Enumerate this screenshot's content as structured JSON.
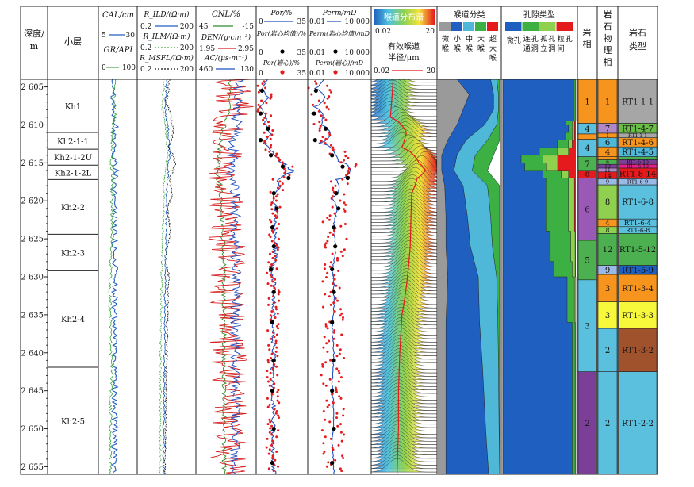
{
  "header": {
    "depth_label": "深度/\nm",
    "layer_label": "小层",
    "cal_label": "CAL/cm",
    "cal_range": [
      "5",
      "30"
    ],
    "gr_label": "GR/API",
    "gr_range": [
      "0",
      "100"
    ],
    "rild_label": "R_ILD/(Ω·m)",
    "rild_range": [
      "0.2",
      "200"
    ],
    "rilm_label": "R_ILM/(Ω·m)",
    "rilm_range": [
      "0.2",
      "200"
    ],
    "rmsfl_label": "R_MSFL/(Ω·m)",
    "rmsfl_range": [
      "0.2",
      "200"
    ],
    "cnl_label": "CNL/%",
    "cnl_range": [
      "45",
      "-15"
    ],
    "den_label": "DEN/(g·cm⁻³)",
    "den_range": [
      "1.95",
      "2.95"
    ],
    "ac_label": "AC/(μs·m⁻¹)",
    "ac_range": [
      "460",
      "130"
    ],
    "por_label": "Por/%",
    "por_range": [
      "0",
      "35"
    ],
    "por_avg_label": "Por(岩心均值)/%",
    "por_avg_range": [
      "0",
      "35"
    ],
    "por_core_label": "Por(岩心)/%",
    "por_core_range": [
      "0",
      "35"
    ],
    "perm_label": "Perm/mD",
    "perm_range": [
      "0.01",
      "10 000"
    ],
    "perm_avg_label": "Perm(岩心均值)/mD",
    "perm_avg_range": [
      "0.01",
      "10 000"
    ],
    "perm_core_label": "Perm(岩心)/mD",
    "perm_core_range": [
      "0.01",
      "10 000"
    ],
    "spectrum_label": "喉道分布谱",
    "spectrum_range": [
      "0.02",
      "20"
    ],
    "radius_label": "有效喉道\n半径/μm",
    "radius_range": [
      "0.02",
      "20"
    ],
    "throat_class_label": "喉道分类",
    "throat_classes": [
      "微喉",
      "小喉",
      "中喉",
      "大喉",
      "超大喉"
    ],
    "pore_type_label": "孔隙类型",
    "pore_types": [
      "微孔",
      "连通孔洞",
      "孤立孔洞",
      "粒间孔"
    ],
    "lithofacies_label": "岩相",
    "petro_facies_label": "岩石物理相",
    "rock_type_label": "岩石类型"
  },
  "colors": {
    "cal": "#1f5fbf",
    "gr": "#3aa63a",
    "cnl": "#2e8b2e",
    "den": "#d62020",
    "ac": "#1f4fbf",
    "por": "#1f4fbf",
    "perm": "#1f4fbf",
    "core_point": "#e41a1c",
    "avg_point": "#000000",
    "throat": [
      "#9a9a9a",
      "#1f5fbf",
      "#4fb8d8",
      "#3cb043",
      "#e41a1c"
    ],
    "pore": [
      "#1f5fbf",
      "#3cb043",
      "#8fd14f",
      "#e41a1c"
    ]
  },
  "chart_data": {
    "type": "well_log",
    "depth_range": [
      2604,
      2656
    ],
    "depth_ticks": [
      "2 605",
      "2 610",
      "2 615",
      "2 620",
      "2 625",
      "2 630",
      "2 635",
      "2 640",
      "2 645",
      "2 650",
      "2 655"
    ],
    "depth_tick_values": [
      2605,
      2610,
      2615,
      2620,
      2625,
      2630,
      2635,
      2640,
      2645,
      2650,
      2655
    ],
    "layers": [
      {
        "name": "Kh1",
        "top": 2604,
        "bottom": 2611
      },
      {
        "name": "Kh2-1-1",
        "top": 2611,
        "bottom": 2613.2
      },
      {
        "name": "Kh2-1-2U",
        "top": 2613.2,
        "bottom": 2615.3
      },
      {
        "name": "Kh2-1-2L",
        "top": 2615.3,
        "bottom": 2617.2
      },
      {
        "name": "Kh2-2",
        "top": 2617.2,
        "bottom": 2624.4
      },
      {
        "name": "Kh2-3",
        "top": 2624.4,
        "bottom": 2629.2
      },
      {
        "name": "Kh2-4",
        "top": 2629.2,
        "bottom": 2641.9
      },
      {
        "name": "Kh2-5",
        "top": 2641.9,
        "bottom": 2656
      }
    ],
    "lithofacies": [
      {
        "label": "1",
        "top": 2604,
        "bottom": 2609.8,
        "color": "#f7941d"
      },
      {
        "label": "4",
        "top": 2609.8,
        "bottom": 2611.2,
        "color": "#5bc0de"
      },
      {
        "label": "1",
        "top": 2611.2,
        "bottom": 2611.9,
        "color": "#f7941d"
      },
      {
        "label": "4",
        "top": 2611.9,
        "bottom": 2614.2,
        "color": "#5bc0de"
      },
      {
        "label": "7",
        "top": 2614.2,
        "bottom": 2616.0,
        "color": "#4caf50"
      },
      {
        "label": "8",
        "top": 2616.0,
        "bottom": 2617.0,
        "color": "#e41a1c"
      },
      {
        "label": "6",
        "top": 2617.0,
        "bottom": 2625.2,
        "color": "#9b59b6"
      },
      {
        "label": "5",
        "top": 2625.2,
        "bottom": 2630.4,
        "color": "#4caf50"
      },
      {
        "label": "3",
        "top": 2630.4,
        "bottom": 2642.5,
        "color": "#5bc0de"
      },
      {
        "label": "2",
        "top": 2642.5,
        "bottom": 2656,
        "color": "#7b3f98"
      }
    ],
    "petro_facies": [
      {
        "label": "1",
        "top": 2604,
        "bottom": 2609.8,
        "color": "#f7941d"
      },
      {
        "label": "7",
        "top": 2609.8,
        "bottom": 2611.1,
        "color": "#b088c8"
      },
      {
        "label": "1",
        "top": 2611.1,
        "bottom": 2611.7,
        "color": "#f7941d"
      },
      {
        "label": "6",
        "top": 2611.7,
        "bottom": 2612.9,
        "color": "#4fb8d8"
      },
      {
        "label": "4",
        "top": 2612.9,
        "bottom": 2614.2,
        "color": "#f7941d"
      },
      {
        "label": "5",
        "top": 2614.2,
        "bottom": 2614.6,
        "color": "#f7941d"
      },
      {
        "label": "6",
        "top": 2614.6,
        "bottom": 2615.2,
        "color": "#4caf50"
      },
      {
        "label": "10",
        "top": 2615.2,
        "bottom": 2615.7,
        "color": "#7b3f98"
      },
      {
        "label": "11",
        "top": 2615.7,
        "bottom": 2616.2,
        "color": "#b088c8"
      },
      {
        "label": "14",
        "top": 2616.2,
        "bottom": 2617.1,
        "color": "#e41a1c"
      },
      {
        "label": "9",
        "top": 2617.1,
        "bottom": 2617.9,
        "color": "#9ab9e6"
      },
      {
        "label": "8",
        "top": 2617.9,
        "bottom": 2622.4,
        "color": "#8fd14f"
      },
      {
        "label": "4",
        "top": 2622.4,
        "bottom": 2623.4,
        "color": "#f7941d"
      },
      {
        "label": "8",
        "top": 2623.4,
        "bottom": 2624.3,
        "color": "#8fd14f"
      },
      {
        "label": "12",
        "top": 2624.3,
        "bottom": 2628.5,
        "color": "#4caf50"
      },
      {
        "label": "9",
        "top": 2628.5,
        "bottom": 2629.7,
        "color": "#9ab9e6"
      },
      {
        "label": "3",
        "top": 2629.7,
        "bottom": 2633.3,
        "color": "#f7941d"
      },
      {
        "label": "3",
        "top": 2633.3,
        "bottom": 2636.8,
        "color": "#f7f73b"
      },
      {
        "label": "2",
        "top": 2636.8,
        "bottom": 2642.5,
        "color": "#5bc0de"
      },
      {
        "label": "2",
        "top": 2642.5,
        "bottom": 2656,
        "color": "#5bc0de"
      }
    ],
    "rock_types": [
      {
        "label": "RT1-1-1",
        "top": 2604,
        "bottom": 2609.8,
        "color": "#a6a6a6"
      },
      {
        "label": "RT1-4-7",
        "top": 2609.8,
        "bottom": 2611.1,
        "color": "#6abd45"
      },
      {
        "label": "RT1-1-1",
        "top": 2611.1,
        "bottom": 2611.7,
        "color": "#a6a6a6"
      },
      {
        "label": "RT1-4-6",
        "top": 2611.7,
        "bottom": 2612.9,
        "color": "#f7941d"
      },
      {
        "label": "RT1-4-5",
        "top": 2612.9,
        "bottom": 2614.2,
        "color": "#4fb8d8"
      },
      {
        "label": "RT1-5-9",
        "top": 2614.2,
        "bottom": 2614.6,
        "color": "#4caf50"
      },
      {
        "label": "RT1-5-10",
        "top": 2614.6,
        "bottom": 2615.2,
        "color": "#7b3f98"
      },
      {
        "label": "RT1-5-10",
        "top": 2615.2,
        "bottom": 2615.7,
        "color": "#e91e8c"
      },
      {
        "label": "RT1-8-14",
        "top": 2615.7,
        "bottom": 2617.1,
        "color": "#e41a1c"
      },
      {
        "label": "RT1-6-9",
        "top": 2617.1,
        "bottom": 2617.9,
        "color": "#9ab9e6"
      },
      {
        "label": "RT1-6-8",
        "top": 2617.9,
        "bottom": 2622.4,
        "color": "#5bc0de"
      },
      {
        "label": "RT1-6-4",
        "top": 2622.4,
        "bottom": 2623.4,
        "color": "#5bc0de"
      },
      {
        "label": "RT1-6-8",
        "top": 2623.4,
        "bottom": 2624.3,
        "color": "#5bc0de"
      },
      {
        "label": "RT1-5-12",
        "top": 2624.3,
        "bottom": 2628.5,
        "color": "#4caf50"
      },
      {
        "label": "RT1-5-9",
        "top": 2628.5,
        "bottom": 2629.7,
        "color": "#1f5fbf"
      },
      {
        "label": "RT1-3-4",
        "top": 2629.7,
        "bottom": 2633.3,
        "color": "#f7941d"
      },
      {
        "label": "RT1-3-3",
        "top": 2633.3,
        "bottom": 2636.8,
        "color": "#f7f73b"
      },
      {
        "label": "RT1-3-2",
        "top": 2636.8,
        "bottom": 2642.5,
        "color": "#a0522d"
      },
      {
        "label": "RT1-2-2",
        "top": 2642.5,
        "bottom": 2656,
        "color": "#5bc0de"
      }
    ],
    "logs": {
      "cal": {
        "depth": [
          2604,
          2608,
          2610,
          2612,
          2614,
          2616,
          2618,
          2620,
          2625,
          2630,
          2635,
          2640,
          2645,
          2650,
          2656
        ],
        "value": [
          14.2,
          14.8,
          16.0,
          15.1,
          14.9,
          16.1,
          15.0,
          15.3,
          15.2,
          15.6,
          15.3,
          15.5,
          15.4,
          15.5,
          15.3
        ]
      },
      "gr": {
        "depth": [
          2604,
          2607,
          2609,
          2611,
          2613,
          2615,
          2617,
          2619,
          2623,
          2627,
          2631,
          2635,
          2639,
          2643,
          2647,
          2651,
          2656
        ],
        "value": [
          42,
          40,
          42,
          36,
          36,
          34,
          38,
          36,
          34,
          33,
          30,
          31,
          32,
          35,
          31,
          32,
          30
        ]
      },
      "rild": {
        "depth": [
          2604,
          2608,
          2611,
          2614,
          2617,
          2620,
          2625,
          2630,
          2640,
          2650,
          2656
        ],
        "value": [
          6.5,
          5.5,
          8.0,
          9.0,
          7.0,
          6.5,
          6.0,
          5.5,
          5.0,
          4.5,
          4.5
        ]
      },
      "rilm": {
        "depth": [
          2604,
          2608,
          2611,
          2614,
          2617,
          2620,
          2625,
          2630,
          2640,
          2650,
          2656
        ],
        "value": [
          4.5,
          4.0,
          6.0,
          7.0,
          5.0,
          4.5,
          4.0,
          3.6,
          3.2,
          3.0,
          3.0
        ]
      },
      "rmsfl": {
        "depth": [
          2604,
          2607,
          2609,
          2611,
          2613,
          2615,
          2617,
          2619,
          2621,
          2624,
          2627,
          2630,
          2635,
          2640,
          2645,
          2650,
          2656
        ],
        "value": [
          9.0,
          6.0,
          11.0,
          14.0,
          8.0,
          18.0,
          9.0,
          12.0,
          7.0,
          10.0,
          6.0,
          8.0,
          7.0,
          6.5,
          6.0,
          5.5,
          5.0
        ]
      },
      "cnl": {
        "depth": [
          2604,
          2608,
          2610,
          2613,
          2616,
          2620,
          2625,
          2630,
          2640,
          2650,
          2656
        ],
        "value": [
          11,
          12,
          17,
          21,
          24,
          19,
          18,
          17,
          17,
          17,
          17
        ]
      },
      "den": {
        "depth": [
          2604,
          2608,
          2610,
          2613,
          2616,
          2620,
          2625,
          2630,
          2640,
          2650,
          2656
        ],
        "value": [
          2.6,
          2.58,
          2.5,
          2.44,
          2.4,
          2.46,
          2.47,
          2.48,
          2.49,
          2.49,
          2.5
        ]
      },
      "ac": {
        "depth": [
          2604,
          2608,
          2610,
          2613,
          2616,
          2620,
          2625,
          2630,
          2640,
          2650,
          2656
        ],
        "value": [
          225,
          228,
          240,
          255,
          262,
          248,
          246,
          244,
          243,
          243,
          242
        ]
      },
      "por": {
        "depth": [
          2604,
          2605.2,
          2606.4,
          2607.6,
          2608.8,
          2610,
          2611.2,
          2612.4,
          2613.6,
          2614.8,
          2616,
          2617.2,
          2618.4,
          2619.6,
          2621,
          2623,
          2625,
          2627,
          2629,
          2631,
          2634,
          2637,
          2640,
          2644,
          2648,
          2652,
          2656
        ],
        "value": [
          7,
          4,
          8,
          3,
          7,
          6,
          10,
          5,
          12,
          16,
          24,
          14,
          15,
          11,
          14,
          12,
          13,
          13,
          11,
          12,
          12,
          11,
          12,
          11,
          12,
          11,
          12
        ]
      },
      "perm": {
        "depth": [
          2604,
          2605.2,
          2606.4,
          2607.6,
          2608.8,
          2610,
          2611.2,
          2612.4,
          2613.6,
          2614.8,
          2616,
          2617.2,
          2618.4,
          2619.6,
          2621,
          2623,
          2625,
          2627,
          2629,
          2631,
          2634,
          2637,
          2640,
          2644,
          2648,
          2652,
          2656
        ],
        "value": [
          0.3,
          0.05,
          0.4,
          0.04,
          0.3,
          0.2,
          1.5,
          0.1,
          3,
          8,
          120,
          5,
          10,
          2,
          6,
          3,
          4,
          4,
          2,
          3,
          3,
          2,
          3,
          2,
          3,
          2,
          3
        ]
      },
      "por_avg": {
        "depth": [
          2605.5,
          2608.5,
          2610.5,
          2612,
          2614,
          2615.5,
          2617,
          2619,
          2621,
          2623.5,
          2626,
          2629,
          2632,
          2636,
          2641,
          2645,
          2650,
          2654.5
        ],
        "value": [
          4,
          3,
          8,
          3,
          10,
          18,
          22,
          12,
          14,
          11,
          12,
          10,
          12,
          11,
          12,
          11,
          12,
          11
        ]
      },
      "perm_avg": {
        "depth": [
          2605.5,
          2608.5,
          2610.5,
          2612,
          2614,
          2615.5,
          2617,
          2619,
          2621,
          2623.5,
          2626,
          2629,
          2632,
          2636,
          2641,
          2645,
          2650,
          2654.5
        ],
        "value": [
          0.06,
          0.04,
          0.5,
          0.05,
          2,
          20,
          60,
          5,
          8,
          3,
          4,
          2,
          3,
          2,
          3,
          2,
          3,
          2
        ]
      }
    },
    "throat_classes_profile": {
      "depth": [
        2604,
        2606,
        2608,
        2610,
        2612,
        2614,
        2616,
        2618,
        2622,
        2626,
        2630,
        2636,
        2642,
        2650,
        2656
      ],
      "micro": [
        0.3,
        0.5,
        0.4,
        0.3,
        0.15,
        0.05,
        0.05,
        0.1,
        0.12,
        0.12,
        0.15,
        0.12,
        0.12,
        0.12,
        0.12
      ],
      "small": [
        0.55,
        0.4,
        0.5,
        0.45,
        0.3,
        0.25,
        0.2,
        0.3,
        0.35,
        0.4,
        0.5,
        0.55,
        0.6,
        0.65,
        0.7
      ],
      "medium": [
        0.1,
        0.08,
        0.08,
        0.2,
        0.35,
        0.3,
        0.3,
        0.4,
        0.38,
        0.36,
        0.3,
        0.3,
        0.26,
        0.22,
        0.18
      ],
      "large": [
        0.05,
        0.02,
        0.02,
        0.05,
        0.2,
        0.3,
        0.25,
        0.2,
        0.15,
        0.12,
        0.05,
        0.03,
        0.02,
        0.01,
        0.0
      ]
    },
    "pore_types_profile": {
      "depth": [
        2604,
        2609.5,
        2610,
        2611,
        2612,
        2613,
        2614,
        2615,
        2616,
        2617,
        2620,
        2624,
        2628,
        2630,
        2636,
        2640,
        2656
      ],
      "micro": [
        0.97,
        0.97,
        0.85,
        0.9,
        0.85,
        0.75,
        0.5,
        0.25,
        0.3,
        0.55,
        0.6,
        0.6,
        0.65,
        0.7,
        0.88,
        0.95,
        0.95
      ],
      "connected": [
        0.02,
        0.02,
        0.1,
        0.05,
        0.1,
        0.15,
        0.25,
        0.3,
        0.3,
        0.25,
        0.3,
        0.3,
        0.28,
        0.25,
        0.1,
        0.04,
        0.04
      ],
      "isolated": [
        0.01,
        0.01,
        0.03,
        0.03,
        0.03,
        0.05,
        0.15,
        0.2,
        0.15,
        0.1,
        0.08,
        0.08,
        0.06,
        0.04,
        0.02,
        0.01,
        0.01
      ],
      "intergranular": [
        0.0,
        0.0,
        0.02,
        0.02,
        0.02,
        0.05,
        0.1,
        0.25,
        0.25,
        0.1,
        0.02,
        0.02,
        0.01,
        0.01,
        0.0,
        0.0,
        0.0
      ]
    },
    "effective_radius": {
      "depth": [
        2604,
        2609,
        2611,
        2613,
        2615,
        2616,
        2617,
        2619,
        2622,
        2626,
        2630,
        2635,
        2640,
        2645,
        2650,
        2656
      ],
      "value": [
        0.2,
        0.15,
        0.8,
        0.5,
        3.0,
        6.0,
        2.5,
        1.4,
        1.3,
        1.2,
        0.9,
        0.5,
        0.4,
        0.35,
        0.35,
        0.3
      ]
    }
  }
}
